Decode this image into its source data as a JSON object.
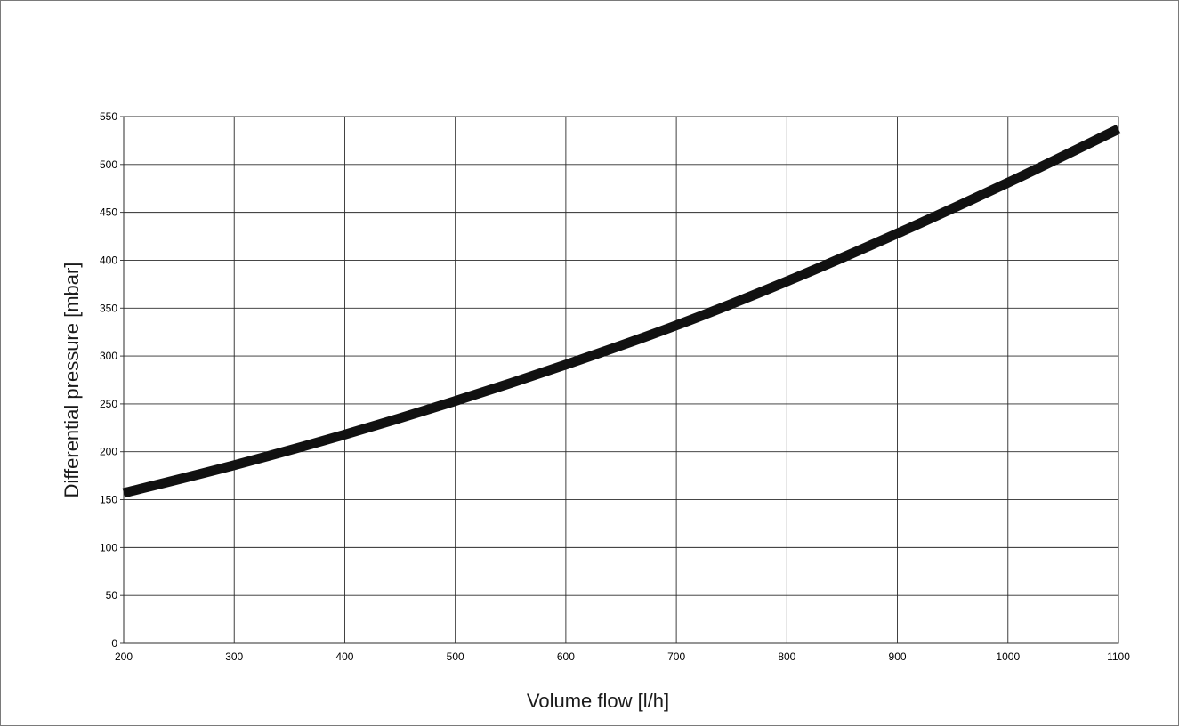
{
  "chart_data": {
    "type": "line",
    "title": "",
    "xlabel": "Volume flow [l/h]",
    "ylabel": "Differential pressure [mbar]",
    "xlim": [
      200,
      1100
    ],
    "ylim": [
      0,
      550
    ],
    "x_ticks": [
      200,
      300,
      400,
      500,
      600,
      700,
      800,
      900,
      1000,
      1100
    ],
    "y_ticks": [
      0,
      50,
      100,
      150,
      200,
      250,
      300,
      350,
      400,
      450,
      500,
      550
    ],
    "grid": true,
    "legend": "none",
    "line_color": "#111111",
    "grid_color": "#2b2b2b",
    "series": [
      {
        "x": [
          200,
          300,
          400,
          500,
          600,
          700,
          800,
          900,
          1000,
          1100
        ],
        "y": [
          157,
          186,
          218,
          253,
          291,
          332,
          378,
          428,
          481,
          537
        ]
      }
    ]
  }
}
